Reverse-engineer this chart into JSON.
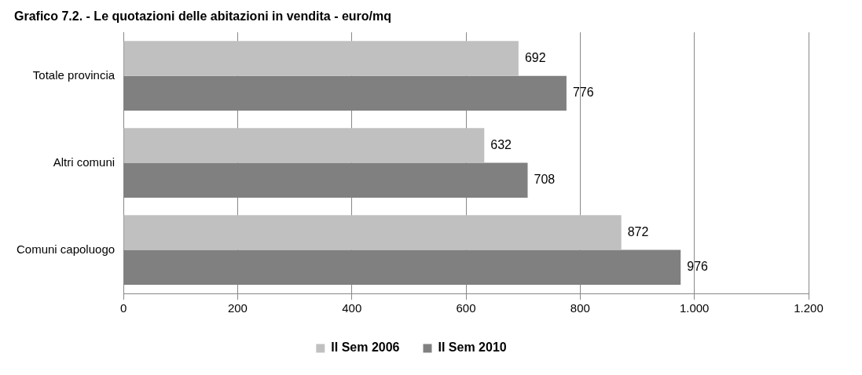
{
  "chart_data": {
    "type": "bar",
    "orientation": "horizontal",
    "title": "Grafico 7.2. - Le quotazioni delle abitazioni in vendita - euro/mq",
    "categories": [
      "Totale provincia",
      "Altri comuni",
      "Comuni capoluogo"
    ],
    "series": [
      {
        "name": "II Sem 2006",
        "color": "#c0c0c0",
        "values": [
          692,
          632,
          872
        ]
      },
      {
        "name": "II Sem 2010",
        "color": "#808080",
        "values": [
          776,
          708,
          976
        ]
      }
    ],
    "xlim": [
      0,
      1200
    ],
    "xticks": [
      0,
      200,
      400,
      600,
      800,
      {
        "value": 1000,
        "label": "1.000"
      },
      {
        "value": 1200,
        "label": "1.200"
      }
    ],
    "grid": "x",
    "legend": "bottom",
    "data_labels": true
  }
}
